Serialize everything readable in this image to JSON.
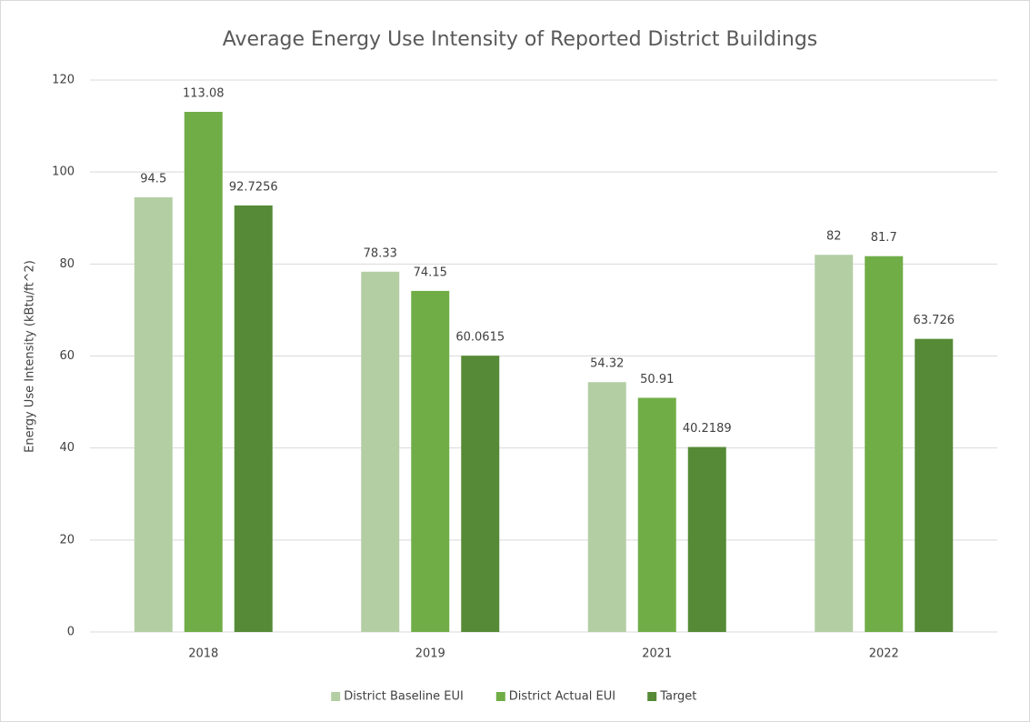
{
  "chart_data": {
    "type": "bar",
    "title": "Average Energy Use Intensity of Reported District Buildings",
    "y_label": "Energy Use Intensity (kBtu/ft^2)",
    "categories": [
      "2018",
      "2019",
      "2021",
      "2022"
    ],
    "series": [
      {
        "name": "District Baseline EUI",
        "color": "#b4cea4",
        "values": [
          94.5,
          78.33,
          54.32,
          82
        ]
      },
      {
        "name": "District Actual EUI",
        "color": "#70ad47",
        "values": [
          113.08,
          74.15,
          50.91,
          81.7
        ]
      },
      {
        "name": "Target",
        "color": "#568a36",
        "values": [
          92.7256,
          60.0615,
          40.2189,
          63.726
        ]
      }
    ],
    "ylim": [
      0,
      120
    ],
    "yticks": [
      0,
      20,
      40,
      60,
      80,
      100,
      120
    ],
    "grid": true,
    "legend": "bottom"
  }
}
